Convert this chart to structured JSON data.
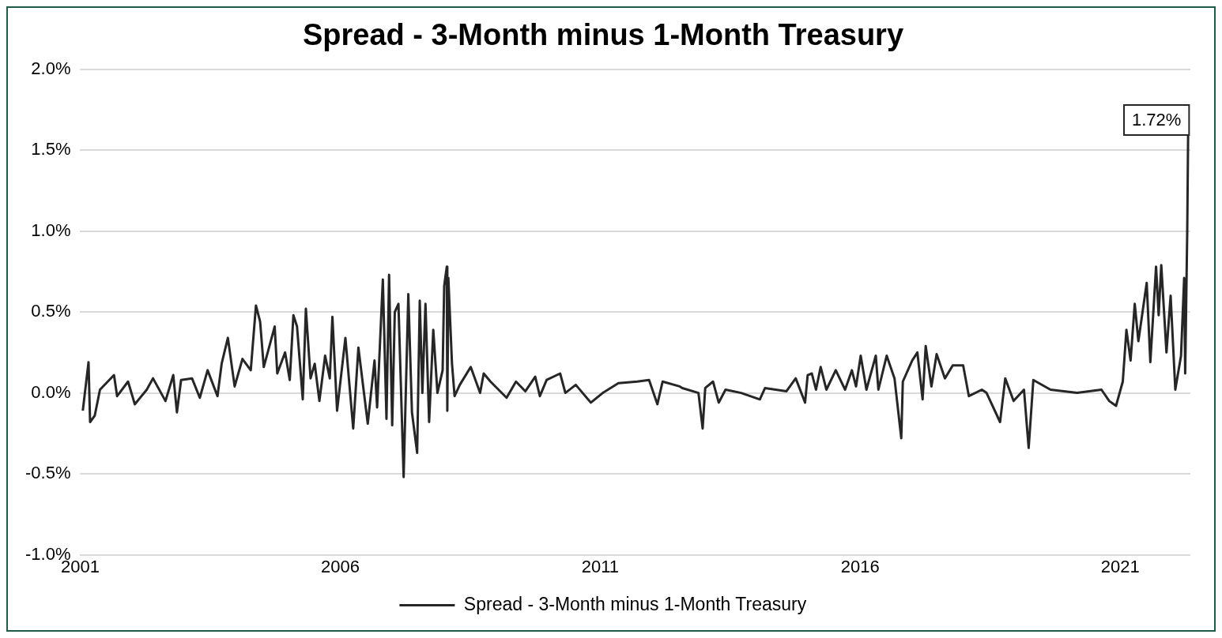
{
  "chart_data": {
    "type": "line",
    "title": "Spread - 3-Month minus 1-Month Treasury",
    "x": [
      2001.05,
      2001.16,
      2001.19,
      2001.28,
      2001.38,
      2001.53,
      2001.65,
      2001.71,
      2001.92,
      2002.05,
      2002.28,
      2002.4,
      2002.64,
      2002.79,
      2002.86,
      2002.94,
      2003.15,
      2003.3,
      2003.45,
      2003.64,
      2003.72,
      2003.84,
      2003.97,
      2004.12,
      2004.28,
      2004.38,
      2004.46,
      2004.53,
      2004.74,
      2004.79,
      2004.94,
      2005.03,
      2005.1,
      2005.17,
      2005.28,
      2005.34,
      2005.43,
      2005.51,
      2005.6,
      2005.71,
      2005.8,
      2005.85,
      2005.94,
      2006.1,
      2006.25,
      2006.35,
      2006.53,
      2006.66,
      2006.71,
      2006.82,
      2006.89,
      2006.94,
      2007.0,
      2007.05,
      2007.12,
      2007.22,
      2007.31,
      2007.38,
      2007.48,
      2007.53,
      2007.58,
      2007.64,
      2007.71,
      2007.79,
      2007.87,
      2007.97,
      2008.0,
      2008.05,
      2008.06,
      2008.08,
      2008.15,
      2008.2,
      2008.3,
      2008.51,
      2008.69,
      2008.76,
      2008.89,
      2009.2,
      2009.38,
      2009.56,
      2009.75,
      2009.84,
      2009.97,
      2010.23,
      2010.33,
      2010.53,
      2010.82,
      2011.05,
      2011.35,
      2011.71,
      2011.94,
      2012.1,
      2012.2,
      2012.53,
      2012.58,
      2012.89,
      2012.97,
      2013.02,
      2013.17,
      2013.28,
      2013.41,
      2013.71,
      2014.07,
      2014.17,
      2014.58,
      2014.76,
      2014.94,
      2014.99,
      2015.07,
      2015.15,
      2015.24,
      2015.35,
      2015.53,
      2015.71,
      2015.84,
      2015.92,
      2016.01,
      2016.12,
      2016.3,
      2016.35,
      2016.51,
      2016.66,
      2016.79,
      2016.82,
      2017.0,
      2017.1,
      2017.2,
      2017.26,
      2017.37,
      2017.47,
      2017.63,
      2017.78,
      2017.98,
      2018.09,
      2018.34,
      2018.43,
      2018.69,
      2018.79,
      2018.95,
      2019.15,
      2019.24,
      2019.33,
      2019.66,
      2020.17,
      2020.64,
      2020.79,
      2020.92,
      2021.05,
      2021.12,
      2021.2,
      2021.28,
      2021.35,
      2021.51,
      2021.58,
      2021.69,
      2021.74,
      2021.79,
      2021.89,
      2021.97,
      2022.06,
      2022.17,
      2022.23,
      2022.25,
      2022.29,
      2022.31
    ],
    "series": [
      {
        "name": "Spread - 3-Month minus 1-Month Treasury",
        "color": "#262626",
        "values": [
          -0.11,
          0.19,
          -0.18,
          -0.14,
          0.02,
          0.07,
          0.11,
          -0.02,
          0.07,
          -0.07,
          0.02,
          0.09,
          -0.05,
          0.11,
          -0.12,
          0.08,
          0.09,
          -0.03,
          0.14,
          -0.02,
          0.18,
          0.34,
          0.04,
          0.21,
          0.14,
          0.54,
          0.44,
          0.16,
          0.41,
          0.12,
          0.25,
          0.08,
          0.48,
          0.41,
          -0.04,
          0.52,
          0.09,
          0.18,
          -0.05,
          0.23,
          0.09,
          0.47,
          -0.11,
          0.34,
          -0.22,
          0.28,
          -0.19,
          0.2,
          -0.09,
          0.7,
          -0.16,
          0.73,
          -0.2,
          0.5,
          0.55,
          -0.52,
          0.61,
          -0.12,
          -0.37,
          0.57,
          0.0,
          0.55,
          -0.18,
          0.39,
          0.0,
          0.14,
          0.66,
          0.78,
          -0.11,
          0.71,
          0.18,
          -0.02,
          0.05,
          0.16,
          0.0,
          0.12,
          0.07,
          -0.03,
          0.07,
          0.01,
          0.1,
          -0.02,
          0.08,
          0.12,
          0.0,
          0.05,
          -0.06,
          0.0,
          0.06,
          0.07,
          0.08,
          -0.07,
          0.07,
          0.04,
          0.03,
          0.0,
          -0.22,
          0.03,
          0.07,
          -0.06,
          0.02,
          0.0,
          -0.04,
          0.03,
          0.01,
          0.09,
          -0.06,
          0.11,
          0.12,
          0.02,
          0.16,
          0.02,
          0.14,
          0.02,
          0.14,
          0.04,
          0.23,
          0.02,
          0.23,
          0.02,
          0.23,
          0.09,
          -0.28,
          0.07,
          0.2,
          0.25,
          -0.04,
          0.29,
          0.04,
          0.24,
          0.09,
          0.17,
          0.17,
          -0.02,
          0.02,
          0.0,
          -0.18,
          0.09,
          -0.05,
          0.02,
          -0.34,
          0.08,
          0.02,
          0.0,
          0.02,
          -0.05,
          -0.08,
          0.07,
          0.39,
          0.2,
          0.55,
          0.32,
          0.68,
          0.19,
          0.78,
          0.48,
          0.79,
          0.25,
          0.6,
          0.02,
          0.23,
          0.71,
          0.12,
          1.01,
          1.72
        ]
      }
    ],
    "xlim": [
      2001,
      2022.35
    ],
    "xticks": [
      2001,
      2006,
      2011,
      2016,
      2021
    ],
    "ylim": [
      -1.0,
      2.0
    ],
    "yticks": [
      {
        "value": -1.0,
        "label": "-1.0%"
      },
      {
        "value": -0.5,
        "label": "-0.5%"
      },
      {
        "value": 0,
        "label": "0.0%"
      },
      {
        "value": 0.5,
        "label": "0.5%"
      },
      {
        "value": 1.0,
        "label": "1.0%"
      },
      {
        "value": 1.5,
        "label": "1.5%"
      },
      {
        "value": 2.0,
        "label": "2.0%"
      }
    ],
    "grid": "y",
    "legend": "bottom",
    "marker": "none",
    "line_style": "solid",
    "annotations": [
      {
        "text": "1.72%",
        "x": 2022.31,
        "y": 1.72
      }
    ]
  }
}
